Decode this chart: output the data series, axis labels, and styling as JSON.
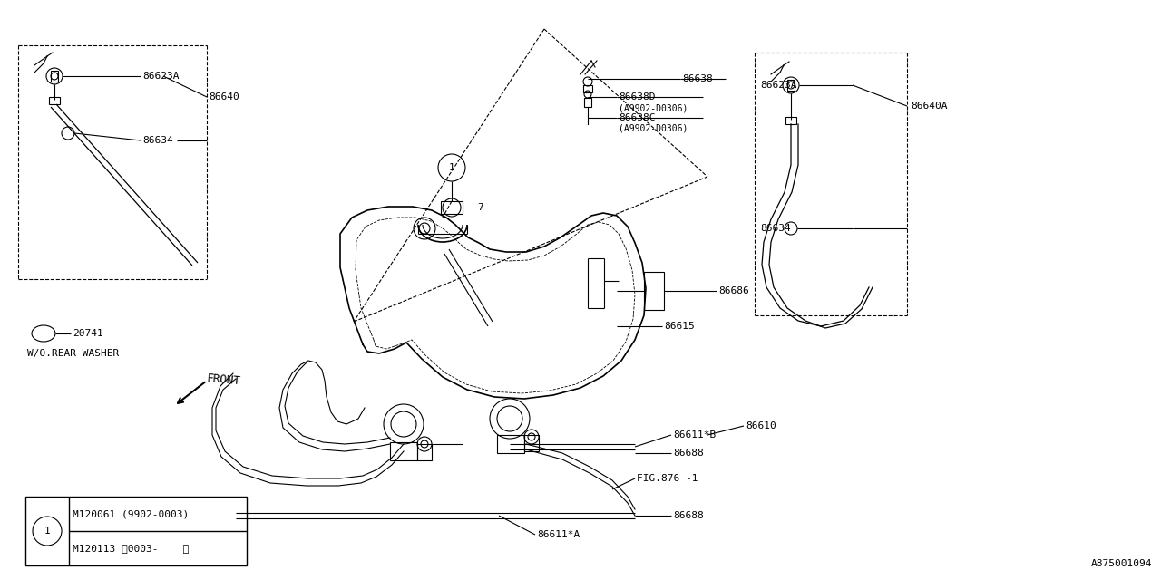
{
  "bg_color": "#ffffff",
  "line_color": "#000000",
  "fig_width": 12.8,
  "fig_height": 6.4,
  "legend_row1": "M120061 (9902-0003)",
  "legend_row2": "M120113 。0003-    〃",
  "bottom_label": "A875001094"
}
